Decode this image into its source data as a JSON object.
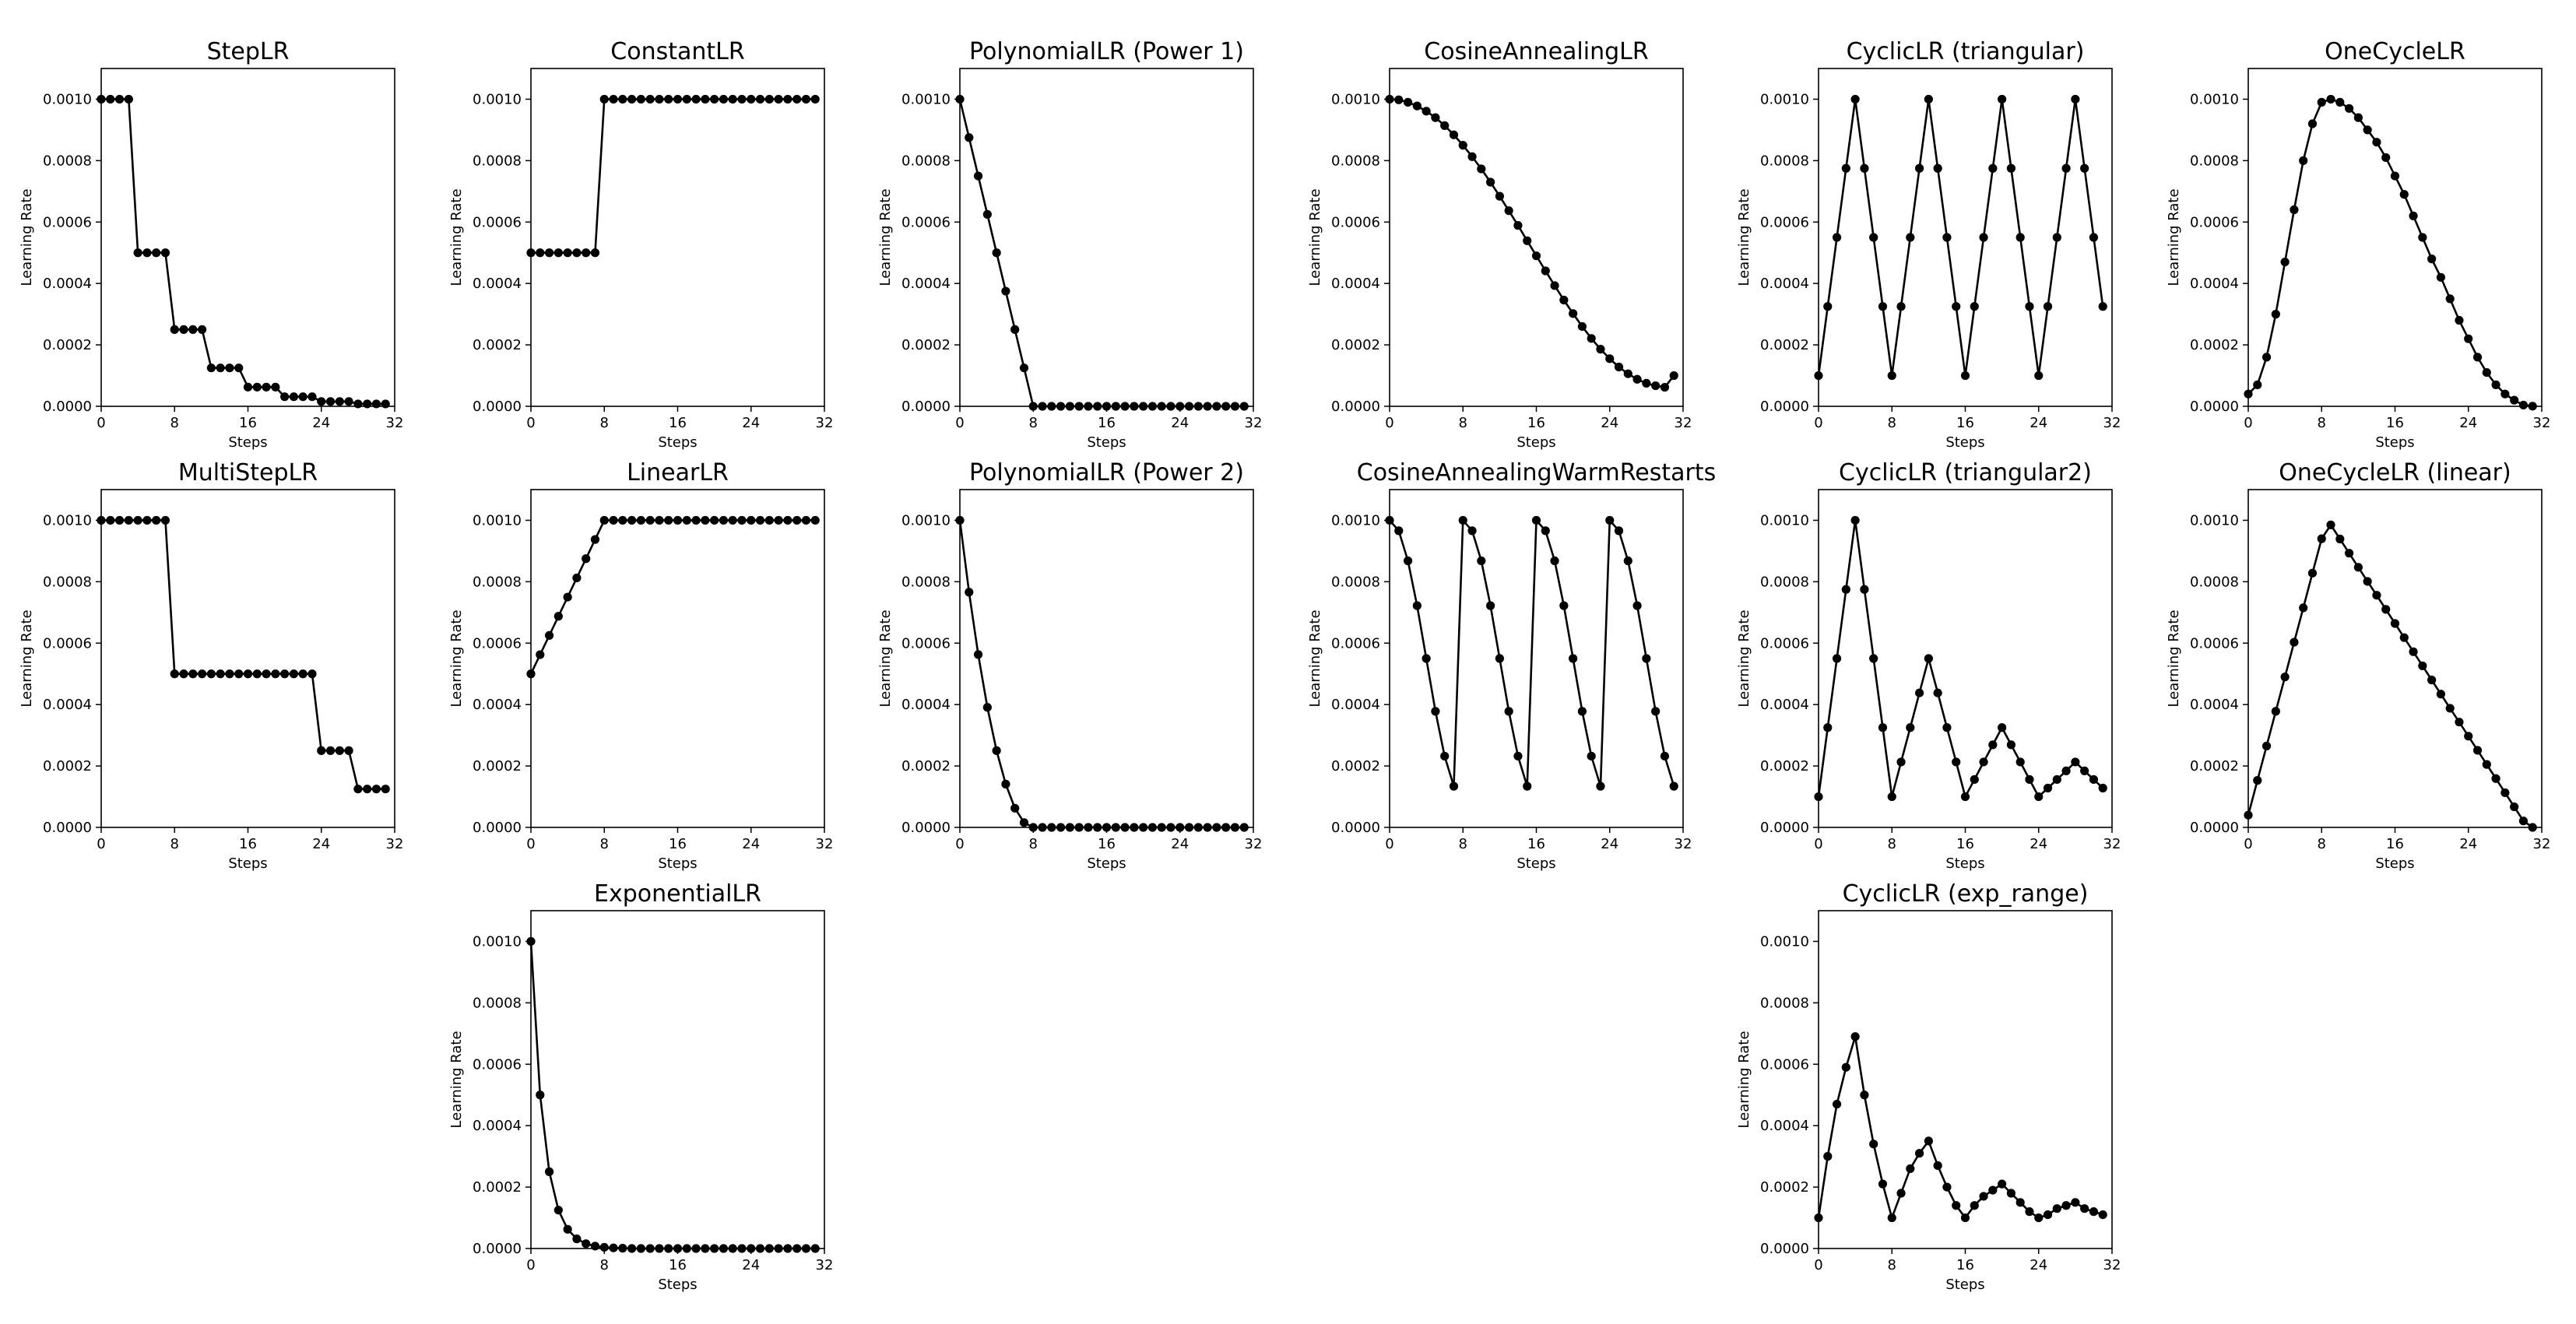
{
  "figure": {
    "line_color": "#000000",
    "marker_color": "#000000",
    "background": "#ffffff"
  },
  "chart_data": [
    {
      "type": "line",
      "title": "StepLR",
      "xlabel": "Steps",
      "ylabel": "Learning Rate",
      "xlim": [
        0,
        32
      ],
      "ylim": [
        0,
        0.0011
      ],
      "xticks": [
        "0",
        "8",
        "16",
        "24",
        "32"
      ],
      "yticks": [
        "0.0000",
        "0.0002",
        "0.0004",
        "0.0006",
        "0.0008",
        "0.0010"
      ],
      "grid": false,
      "x": [
        0,
        1,
        2,
        3,
        4,
        5,
        6,
        7,
        8,
        9,
        10,
        11,
        12,
        13,
        14,
        15,
        16,
        17,
        18,
        19,
        20,
        21,
        22,
        23,
        24,
        25,
        26,
        27,
        28,
        29,
        30,
        31
      ],
      "y": [
        0.001,
        0.001,
        0.001,
        0.001,
        0.0005,
        0.0005,
        0.0005,
        0.0005,
        0.00025,
        0.00025,
        0.00025,
        0.00025,
        0.000125,
        0.000125,
        0.000125,
        0.000125,
        6.25e-05,
        6.25e-05,
        6.25e-05,
        6.25e-05,
        3.125e-05,
        3.125e-05,
        3.125e-05,
        3.125e-05,
        1.56e-05,
        1.56e-05,
        1.56e-05,
        1.56e-05,
        7.8e-06,
        7.8e-06,
        7.8e-06,
        7.8e-06
      ]
    },
    {
      "type": "line",
      "title": "ConstantLR",
      "xlabel": "Steps",
      "ylabel": "Learning Rate",
      "xlim": [
        0,
        32
      ],
      "ylim": [
        0,
        0.0011
      ],
      "xticks": [
        "0",
        "8",
        "16",
        "24",
        "32"
      ],
      "yticks": [
        "0.0000",
        "0.0002",
        "0.0004",
        "0.0006",
        "0.0008",
        "0.0010"
      ],
      "grid": false,
      "x": [
        0,
        1,
        2,
        3,
        4,
        5,
        6,
        7,
        8,
        9,
        10,
        11,
        12,
        13,
        14,
        15,
        16,
        17,
        18,
        19,
        20,
        21,
        22,
        23,
        24,
        25,
        26,
        27,
        28,
        29,
        30,
        31
      ],
      "y": [
        0.0005,
        0.0005,
        0.0005,
        0.0005,
        0.0005,
        0.0005,
        0.0005,
        0.0005,
        0.001,
        0.001,
        0.001,
        0.001,
        0.001,
        0.001,
        0.001,
        0.001,
        0.001,
        0.001,
        0.001,
        0.001,
        0.001,
        0.001,
        0.001,
        0.001,
        0.001,
        0.001,
        0.001,
        0.001,
        0.001,
        0.001,
        0.001,
        0.001
      ]
    },
    {
      "type": "line",
      "title": "PolynomialLR (Power 1)",
      "xlabel": "Steps",
      "ylabel": "Learning Rate",
      "xlim": [
        0,
        32
      ],
      "ylim": [
        0,
        0.0011
      ],
      "xticks": [
        "0",
        "8",
        "16",
        "24",
        "32"
      ],
      "yticks": [
        "0.0000",
        "0.0002",
        "0.0004",
        "0.0006",
        "0.0008",
        "0.0010"
      ],
      "grid": false,
      "x": [
        0,
        1,
        2,
        3,
        4,
        5,
        6,
        7,
        8,
        9,
        10,
        11,
        12,
        13,
        14,
        15,
        16,
        17,
        18,
        19,
        20,
        21,
        22,
        23,
        24,
        25,
        26,
        27,
        28,
        29,
        30,
        31
      ],
      "y": [
        0.001,
        0.000875,
        0.00075,
        0.000625,
        0.0005,
        0.000375,
        0.00025,
        0.000125,
        0,
        0,
        0,
        0,
        0,
        0,
        0,
        0,
        0,
        0,
        0,
        0,
        0,
        0,
        0,
        0,
        0,
        0,
        0,
        0,
        0,
        0,
        0,
        0
      ]
    },
    {
      "type": "line",
      "title": "CosineAnnealingLR",
      "xlabel": "Steps",
      "ylabel": "Learning Rate",
      "xlim": [
        0,
        32
      ],
      "ylim": [
        0,
        0.0011
      ],
      "xticks": [
        "0",
        "8",
        "16",
        "24",
        "32"
      ],
      "yticks": [
        "0.0000",
        "0.0002",
        "0.0004",
        "0.0006",
        "0.0008",
        "0.0010"
      ],
      "grid": false,
      "x": [
        0,
        1,
        2,
        3,
        4,
        5,
        6,
        7,
        8,
        9,
        10,
        11,
        12,
        13,
        14,
        15,
        16,
        17,
        18,
        19,
        20,
        21,
        22,
        23,
        24,
        25,
        26,
        27,
        28,
        29,
        30,
        31
      ],
      "y": [
        0.001,
        0.000998,
        0.00099,
        0.000978,
        0.000961,
        0.00094,
        0.000914,
        0.000884,
        0.00085,
        0.000813,
        0.000773,
        0.00073,
        0.000684,
        0.000637,
        0.000589,
        0.000539,
        0.00049,
        0.000441,
        0.000393,
        0.000346,
        0.000302,
        0.00026,
        0.000221,
        0.000186,
        0.000155,
        0.000128,
        0.000106,
        8.8e-05,
        7.5e-05,
        6.7e-05,
        6.2e-05,
        0.0001
      ]
    },
    {
      "type": "line",
      "title": "CyclicLR (triangular)",
      "xlabel": "Steps",
      "ylabel": "Learning Rate",
      "xlim": [
        0,
        32
      ],
      "ylim": [
        0,
        0.0011
      ],
      "xticks": [
        "0",
        "8",
        "16",
        "24",
        "32"
      ],
      "yticks": [
        "0.0000",
        "0.0002",
        "0.0004",
        "0.0006",
        "0.0008",
        "0.0010"
      ],
      "grid": false,
      "x": [
        0,
        1,
        2,
        3,
        4,
        5,
        6,
        7,
        8,
        9,
        10,
        11,
        12,
        13,
        14,
        15,
        16,
        17,
        18,
        19,
        20,
        21,
        22,
        23,
        24,
        25,
        26,
        27,
        28,
        29,
        30,
        31
      ],
      "y": [
        0.0001,
        0.000325,
        0.00055,
        0.000775,
        0.001,
        0.000775,
        0.00055,
        0.000325,
        0.0001,
        0.000325,
        0.00055,
        0.000775,
        0.001,
        0.000775,
        0.00055,
        0.000325,
        0.0001,
        0.000325,
        0.00055,
        0.000775,
        0.001,
        0.000775,
        0.00055,
        0.000325,
        0.0001,
        0.000325,
        0.00055,
        0.000775,
        0.001,
        0.000775,
        0.00055,
        0.000325
      ]
    },
    {
      "type": "line",
      "title": "OneCycleLR",
      "xlabel": "Steps",
      "ylabel": "Learning Rate",
      "xlim": [
        0,
        32
      ],
      "ylim": [
        0,
        0.0011
      ],
      "xticks": [
        "0",
        "8",
        "16",
        "24",
        "32"
      ],
      "yticks": [
        "0.0000",
        "0.0002",
        "0.0004",
        "0.0006",
        "0.0008",
        "0.0010"
      ],
      "grid": false,
      "x": [
        0,
        1,
        2,
        3,
        4,
        5,
        6,
        7,
        8,
        9,
        10,
        11,
        12,
        13,
        14,
        15,
        16,
        17,
        18,
        19,
        20,
        21,
        22,
        23,
        24,
        25,
        26,
        27,
        28,
        29,
        30,
        31
      ],
      "y": [
        4e-05,
        7e-05,
        0.00016,
        0.0003,
        0.00047,
        0.00064,
        0.0008,
        0.00092,
        0.00099,
        0.001,
        0.00099,
        0.00097,
        0.00094,
        0.0009,
        0.00086,
        0.00081,
        0.00075,
        0.00069,
        0.00062,
        0.00055,
        0.00048,
        0.00042,
        0.00035,
        0.00028,
        0.00022,
        0.00016,
        0.00011,
        7e-05,
        4e-05,
        2e-05,
        4e-06,
        4e-07
      ]
    },
    {
      "type": "line",
      "title": "MultiStepLR",
      "xlabel": "Steps",
      "ylabel": "Learning Rate",
      "xlim": [
        0,
        32
      ],
      "ylim": [
        0,
        0.0011
      ],
      "xticks": [
        "0",
        "8",
        "16",
        "24",
        "32"
      ],
      "yticks": [
        "0.0000",
        "0.0002",
        "0.0004",
        "0.0006",
        "0.0008",
        "0.0010"
      ],
      "grid": false,
      "x": [
        0,
        1,
        2,
        3,
        4,
        5,
        6,
        7,
        8,
        9,
        10,
        11,
        12,
        13,
        14,
        15,
        16,
        17,
        18,
        19,
        20,
        21,
        22,
        23,
        24,
        25,
        26,
        27,
        28,
        29,
        30,
        31
      ],
      "y": [
        0.001,
        0.001,
        0.001,
        0.001,
        0.001,
        0.001,
        0.001,
        0.001,
        0.0005,
        0.0005,
        0.0005,
        0.0005,
        0.0005,
        0.0005,
        0.0005,
        0.0005,
        0.0005,
        0.0005,
        0.0005,
        0.0005,
        0.0005,
        0.0005,
        0.0005,
        0.0005,
        0.00025,
        0.00025,
        0.00025,
        0.00025,
        0.000125,
        0.000125,
        0.000125,
        0.000125
      ]
    },
    {
      "type": "line",
      "title": "LinearLR",
      "xlabel": "Steps",
      "ylabel": "Learning Rate",
      "xlim": [
        0,
        32
      ],
      "ylim": [
        0,
        0.0011
      ],
      "xticks": [
        "0",
        "8",
        "16",
        "24",
        "32"
      ],
      "yticks": [
        "0.0000",
        "0.0002",
        "0.0004",
        "0.0006",
        "0.0008",
        "0.0010"
      ],
      "grid": false,
      "x": [
        0,
        1,
        2,
        3,
        4,
        5,
        6,
        7,
        8,
        9,
        10,
        11,
        12,
        13,
        14,
        15,
        16,
        17,
        18,
        19,
        20,
        21,
        22,
        23,
        24,
        25,
        26,
        27,
        28,
        29,
        30,
        31
      ],
      "y": [
        0.0005,
        0.0005625,
        0.000625,
        0.0006875,
        0.00075,
        0.0008125,
        0.000875,
        0.0009375,
        0.001,
        0.001,
        0.001,
        0.001,
        0.001,
        0.001,
        0.001,
        0.001,
        0.001,
        0.001,
        0.001,
        0.001,
        0.001,
        0.001,
        0.001,
        0.001,
        0.001,
        0.001,
        0.001,
        0.001,
        0.001,
        0.001,
        0.001,
        0.001
      ]
    },
    {
      "type": "line",
      "title": "PolynomialLR (Power 2)",
      "xlabel": "Steps",
      "ylabel": "Learning Rate",
      "xlim": [
        0,
        32
      ],
      "ylim": [
        0,
        0.0011
      ],
      "xticks": [
        "0",
        "8",
        "16",
        "24",
        "32"
      ],
      "yticks": [
        "0.0000",
        "0.0002",
        "0.0004",
        "0.0006",
        "0.0008",
        "0.0010"
      ],
      "grid": false,
      "x": [
        0,
        1,
        2,
        3,
        4,
        5,
        6,
        7,
        8,
        9,
        10,
        11,
        12,
        13,
        14,
        15,
        16,
        17,
        18,
        19,
        20,
        21,
        22,
        23,
        24,
        25,
        26,
        27,
        28,
        29,
        30,
        31
      ],
      "y": [
        0.001,
        0.000766,
        0.000563,
        0.000391,
        0.00025,
        0.000141,
        6.25e-05,
        1.56e-05,
        0,
        0,
        0,
        0,
        0,
        0,
        0,
        0,
        0,
        0,
        0,
        0,
        0,
        0,
        0,
        0,
        0,
        0,
        0,
        0,
        0,
        0,
        0,
        0
      ]
    },
    {
      "type": "line",
      "title": "CosineAnnealingWarmRestarts",
      "xlabel": "Steps",
      "ylabel": "Learning Rate",
      "xlim": [
        0,
        32
      ],
      "ylim": [
        0,
        0.0011
      ],
      "xticks": [
        "0",
        "8",
        "16",
        "24",
        "32"
      ],
      "yticks": [
        "0.0000",
        "0.0002",
        "0.0004",
        "0.0006",
        "0.0008",
        "0.0010"
      ],
      "grid": false,
      "x": [
        0,
        1,
        2,
        3,
        4,
        5,
        6,
        7,
        8,
        9,
        10,
        11,
        12,
        13,
        14,
        15,
        16,
        17,
        18,
        19,
        20,
        21,
        22,
        23,
        24,
        25,
        26,
        27,
        28,
        29,
        30,
        31
      ],
      "y": [
        0.001,
        0.000966,
        0.000868,
        0.000722,
        0.00055,
        0.000378,
        0.000232,
        0.000134,
        0.001,
        0.000966,
        0.000868,
        0.000722,
        0.00055,
        0.000378,
        0.000232,
        0.000134,
        0.001,
        0.000966,
        0.000868,
        0.000722,
        0.00055,
        0.000378,
        0.000232,
        0.000134,
        0.001,
        0.000966,
        0.000868,
        0.000722,
        0.00055,
        0.000378,
        0.000232,
        0.000134
      ]
    },
    {
      "type": "line",
      "title": "CyclicLR (triangular2)",
      "xlabel": "Steps",
      "ylabel": "Learning Rate",
      "xlim": [
        0,
        32
      ],
      "ylim": [
        0,
        0.0011
      ],
      "xticks": [
        "0",
        "8",
        "16",
        "24",
        "32"
      ],
      "yticks": [
        "0.0000",
        "0.0002",
        "0.0004",
        "0.0006",
        "0.0008",
        "0.0010"
      ],
      "grid": false,
      "x": [
        0,
        1,
        2,
        3,
        4,
        5,
        6,
        7,
        8,
        9,
        10,
        11,
        12,
        13,
        14,
        15,
        16,
        17,
        18,
        19,
        20,
        21,
        22,
        23,
        24,
        25,
        26,
        27,
        28,
        29,
        30,
        31
      ],
      "y": [
        0.0001,
        0.000325,
        0.00055,
        0.000775,
        0.001,
        0.000775,
        0.00055,
        0.000325,
        0.0001,
        0.000213,
        0.000325,
        0.000438,
        0.00055,
        0.000438,
        0.000325,
        0.000213,
        0.0001,
        0.000156,
        0.000213,
        0.000269,
        0.000325,
        0.000269,
        0.000213,
        0.000156,
        0.0001,
        0.000128,
        0.000156,
        0.000184,
        0.000213,
        0.000184,
        0.000156,
        0.000128
      ]
    },
    {
      "type": "line",
      "title": "OneCycleLR (linear)",
      "xlabel": "Steps",
      "ylabel": "Learning Rate",
      "xlim": [
        0,
        32
      ],
      "ylim": [
        0,
        0.0011
      ],
      "xticks": [
        "0",
        "8",
        "16",
        "24",
        "32"
      ],
      "yticks": [
        "0.0000",
        "0.0002",
        "0.0004",
        "0.0006",
        "0.0008",
        "0.0010"
      ],
      "grid": false,
      "x": [
        0,
        1,
        2,
        3,
        4,
        5,
        6,
        7,
        8,
        9,
        10,
        11,
        12,
        13,
        14,
        15,
        16,
        17,
        18,
        19,
        20,
        21,
        22,
        23,
        24,
        25,
        26,
        27,
        28,
        29,
        30,
        31
      ],
      "y": [
        4e-05,
        0.000153,
        0.000265,
        0.000378,
        0.00049,
        0.000603,
        0.000715,
        0.000828,
        0.00094,
        0.000985,
        0.000939,
        0.000893,
        0.000847,
        0.000801,
        0.000756,
        0.00071,
        0.000664,
        0.000618,
        0.000572,
        0.000526,
        0.00048,
        0.000434,
        0.000388,
        0.000343,
        0.000297,
        0.000251,
        0.000205,
        0.000159,
        0.000113,
        6.7e-05,
        2.1e-05,
        0
      ]
    },
    {
      "type": "line",
      "title": "ExponentialLR",
      "xlabel": "Steps",
      "ylabel": "Learning Rate",
      "xlim": [
        0,
        32
      ],
      "ylim": [
        0,
        0.0011
      ],
      "xticks": [
        "0",
        "8",
        "16",
        "24",
        "32"
      ],
      "yticks": [
        "0.0000",
        "0.0002",
        "0.0004",
        "0.0006",
        "0.0008",
        "0.0010"
      ],
      "grid": false,
      "x": [
        0,
        1,
        2,
        3,
        4,
        5,
        6,
        7,
        8,
        9,
        10,
        11,
        12,
        13,
        14,
        15,
        16,
        17,
        18,
        19,
        20,
        21,
        22,
        23,
        24,
        25,
        26,
        27,
        28,
        29,
        30,
        31
      ],
      "y": [
        0.001,
        0.0005,
        0.00025,
        0.000125,
        6.25e-05,
        3.13e-05,
        1.56e-05,
        7.8e-06,
        3.9e-06,
        2e-06,
        1e-06,
        0,
        0,
        0,
        0,
        0,
        0,
        0,
        0,
        0,
        0,
        0,
        0,
        0,
        0,
        0,
        0,
        0,
        0,
        0,
        0,
        0
      ]
    },
    {
      "type": "line",
      "title": "CyclicLR (exp_range)",
      "xlabel": "Steps",
      "ylabel": "Learning Rate",
      "xlim": [
        0,
        32
      ],
      "ylim": [
        0,
        0.0011
      ],
      "xticks": [
        "0",
        "8",
        "16",
        "24",
        "32"
      ],
      "yticks": [
        "0.0000",
        "0.0002",
        "0.0004",
        "0.0006",
        "0.0008",
        "0.0010"
      ],
      "grid": false,
      "x": [
        0,
        1,
        2,
        3,
        4,
        5,
        6,
        7,
        8,
        9,
        10,
        11,
        12,
        13,
        14,
        15,
        16,
        17,
        18,
        19,
        20,
        21,
        22,
        23,
        24,
        25,
        26,
        27,
        28,
        29,
        30,
        31
      ],
      "y": [
        0.0001,
        0.0003,
        0.00047,
        0.00059,
        0.00069,
        0.0005,
        0.00034,
        0.00021,
        0.0001,
        0.00018,
        0.00026,
        0.00031,
        0.00035,
        0.00027,
        0.0002,
        0.00014,
        0.0001,
        0.00014,
        0.00017,
        0.00019,
        0.00021,
        0.00018,
        0.00015,
        0.00012,
        0.0001,
        0.00011,
        0.00013,
        0.00014,
        0.00015,
        0.00013,
        0.00012,
        0.00011
      ]
    }
  ]
}
